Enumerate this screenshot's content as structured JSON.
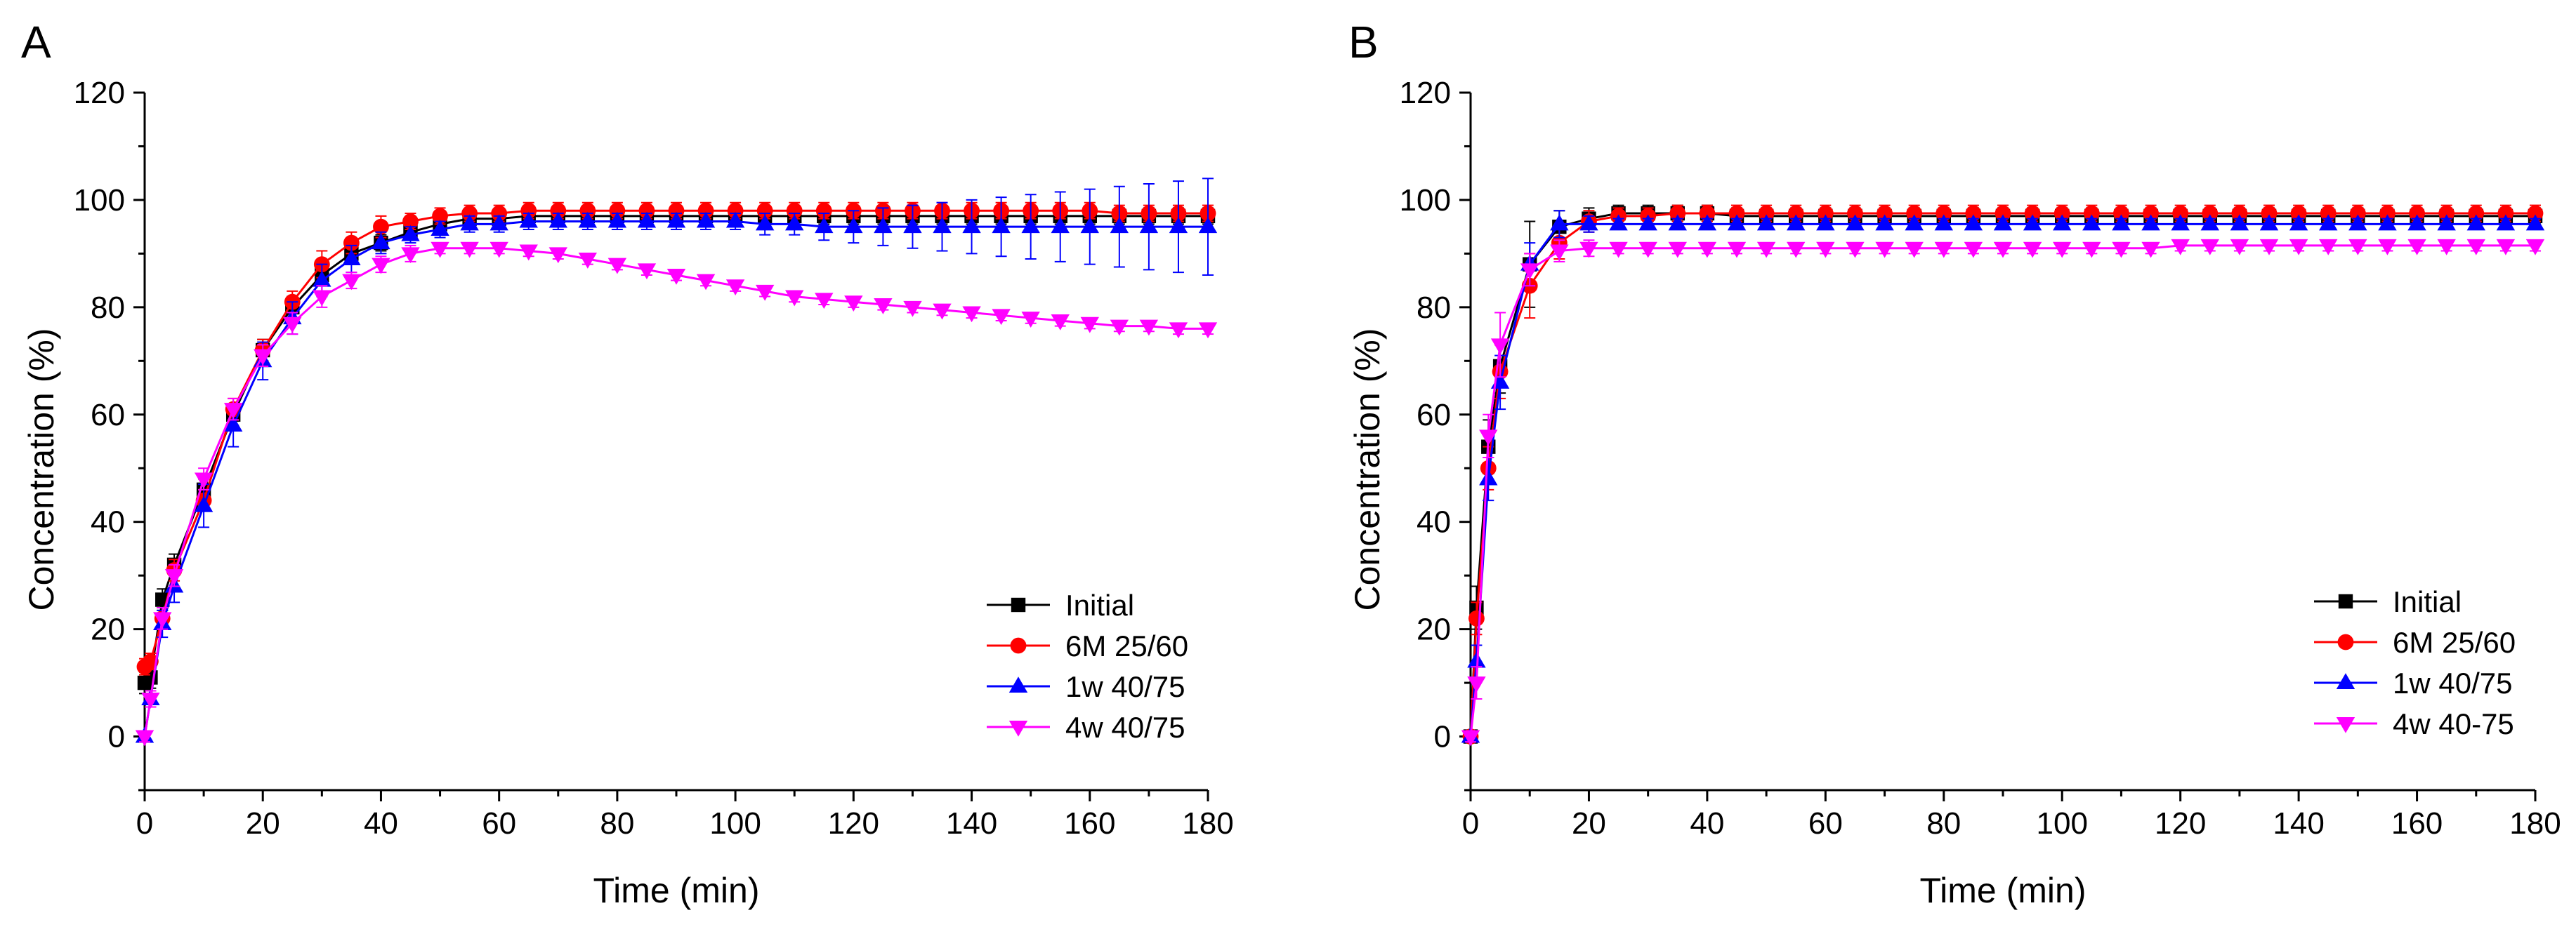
{
  "chart_data": [
    {
      "type": "line",
      "panel_label": "A",
      "xlabel": "Time (min)",
      "ylabel": "Concentration (%)",
      "xlim": [
        0,
        180
      ],
      "ylim": [
        -10,
        120
      ],
      "xticks": [
        0,
        20,
        40,
        60,
        80,
        100,
        120,
        140,
        160,
        180
      ],
      "yticks": [
        0,
        20,
        40,
        60,
        80,
        100,
        120
      ],
      "grid": false,
      "legend_position": "bottom-right",
      "x": [
        0,
        1,
        3,
        5,
        10,
        15,
        20,
        25,
        30,
        35,
        40,
        45,
        50,
        55,
        60,
        65,
        70,
        75,
        80,
        85,
        90,
        95,
        100,
        105,
        110,
        115,
        120,
        125,
        130,
        135,
        140,
        145,
        150,
        155,
        160,
        165,
        170,
        175,
        180
      ],
      "series": [
        {
          "name": "Initial",
          "color": "#000000",
          "marker": "square",
          "values": [
            10,
            11,
            25.5,
            32,
            46,
            60,
            72,
            80,
            86,
            90,
            92,
            94,
            95.5,
            96.5,
            96.5,
            97,
            97,
            97,
            97,
            97,
            97,
            97,
            97,
            97,
            97,
            97,
            97,
            97,
            97,
            97,
            97,
            97,
            97,
            97,
            97,
            97,
            97,
            97,
            97
          ],
          "errors": [
            2,
            2,
            2,
            2,
            2,
            2,
            2,
            2,
            2,
            1.5,
            1.5,
            1.5,
            1.5,
            1.5,
            1.5,
            1.5,
            1.5,
            1.5,
            1.5,
            1.5,
            1.5,
            1.5,
            1.5,
            1.5,
            1.5,
            1.5,
            1.5,
            1.5,
            1.5,
            1.5,
            1.5,
            1.5,
            1.5,
            1.5,
            1.5,
            1.5,
            1.5,
            1.5,
            1.5
          ]
        },
        {
          "name": "6M 25/60",
          "color": "#ff0000",
          "marker": "circle",
          "values": [
            13,
            14,
            22,
            31,
            44,
            61,
            72,
            81,
            88,
            92,
            95,
            96,
            97,
            97.5,
            97.5,
            98,
            98,
            98,
            98,
            98,
            98,
            98,
            98,
            98,
            98,
            98,
            98,
            98,
            98,
            98,
            98,
            98,
            98,
            98,
            98,
            97.5,
            97.5,
            97.5,
            97.5
          ],
          "errors": [
            1.5,
            1.5,
            2,
            2,
            2,
            2,
            2,
            2,
            2.5,
            2,
            2,
            1.5,
            1.5,
            1.5,
            1.5,
            1.5,
            1.5,
            1.5,
            1.5,
            1.5,
            1.5,
            1.5,
            1.5,
            1.5,
            1.5,
            1.5,
            1.5,
            1.5,
            1.5,
            1.5,
            1.5,
            1.5,
            1.5,
            1.5,
            1.5,
            1.5,
            1.5,
            1.5,
            1.5
          ]
        },
        {
          "name": "1w 40/75",
          "color": "#0000ff",
          "marker": "triangle-up",
          "values": [
            0,
            7,
            21,
            28,
            43,
            58,
            70,
            78,
            85,
            89,
            92,
            93.5,
            94.5,
            95.5,
            95.5,
            96,
            96,
            96,
            96,
            96,
            96,
            96,
            96,
            95.5,
            95.5,
            95,
            95,
            95,
            95,
            95,
            95,
            95,
            95,
            95,
            95,
            95,
            95,
            95,
            95
          ],
          "errors": [
            1,
            1.5,
            2.5,
            3,
            4,
            4,
            3.5,
            3,
            3,
            2.5,
            2,
            1.5,
            1.5,
            1.5,
            1.5,
            1.5,
            1.5,
            1.5,
            1.5,
            1.5,
            1.5,
            1.5,
            1.5,
            2,
            2,
            2.5,
            3,
            3.5,
            4,
            4.5,
            5,
            5.5,
            6,
            6.5,
            7,
            7.5,
            8,
            8.5,
            9
          ]
        },
        {
          "name": "4w 40/75",
          "color": "#ff00ff",
          "marker": "triangle-down",
          "values": [
            0,
            7,
            22,
            30,
            48,
            61,
            71,
            77,
            82,
            85,
            88,
            90,
            91,
            91,
            91,
            90.5,
            90,
            89,
            88,
            87,
            86,
            85,
            84,
            83,
            82,
            81.5,
            81,
            80.5,
            80,
            79.5,
            79,
            78.5,
            78,
            77.5,
            77,
            76.5,
            76.5,
            76,
            76
          ],
          "errors": [
            1,
            1.5,
            2,
            2,
            2,
            2,
            2,
            2,
            2,
            1.5,
            1.5,
            1.5,
            1,
            1,
            1,
            1,
            1,
            1,
            1,
            1,
            1,
            1,
            1,
            1,
            1,
            1,
            1,
            1,
            1,
            1,
            1,
            1,
            1,
            1,
            1,
            1,
            1,
            1,
            1
          ]
        }
      ]
    },
    {
      "type": "line",
      "panel_label": "B",
      "xlabel": "Time (min)",
      "ylabel": "Concentration (%)",
      "xlim": [
        0,
        180
      ],
      "ylim": [
        -10,
        120
      ],
      "xticks": [
        0,
        20,
        40,
        60,
        80,
        100,
        120,
        140,
        160,
        180
      ],
      "yticks": [
        0,
        20,
        40,
        60,
        80,
        100,
        120
      ],
      "grid": false,
      "legend_position": "bottom-right",
      "x": [
        0,
        1,
        3,
        5,
        10,
        15,
        20,
        25,
        30,
        35,
        40,
        45,
        50,
        55,
        60,
        65,
        70,
        75,
        80,
        85,
        90,
        95,
        100,
        105,
        110,
        115,
        120,
        125,
        130,
        135,
        140,
        145,
        150,
        155,
        160,
        165,
        170,
        175,
        180
      ],
      "series": [
        {
          "name": "Initial",
          "color": "#000000",
          "marker": "square",
          "values": [
            0,
            24,
            54,
            69,
            88,
            95,
            96.5,
            97.5,
            97.5,
            97.5,
            97.5,
            97,
            97,
            97,
            97,
            97,
            97,
            97,
            97,
            97,
            97,
            97,
            97,
            97,
            97,
            97,
            97,
            97,
            97,
            97,
            97,
            97,
            97,
            97,
            97,
            97,
            97,
            97,
            97
          ],
          "errors": [
            1,
            4,
            5,
            5,
            8,
            3,
            2,
            1.5,
            1.5,
            1.5,
            1.5,
            1.5,
            1.5,
            1.5,
            1.5,
            1.5,
            1.5,
            1.5,
            1.5,
            1.5,
            1.5,
            1.5,
            1.5,
            1.5,
            1.5,
            1.5,
            1.5,
            1.5,
            1.5,
            1.5,
            1.5,
            1.5,
            1.5,
            1.5,
            1.5,
            1.5,
            1.5,
            1.5,
            1.5
          ]
        },
        {
          "name": "6M 25/60",
          "color": "#ff0000",
          "marker": "circle",
          "values": [
            0,
            22,
            50,
            68,
            84,
            92,
            96,
            97,
            97,
            97.5,
            97.5,
            97.5,
            97.5,
            97.5,
            97.5,
            97.5,
            97.5,
            97.5,
            97.5,
            97.5,
            97.5,
            97.5,
            97.5,
            97.5,
            97.5,
            97.5,
            97.5,
            97.5,
            97.5,
            97.5,
            97.5,
            97.5,
            97.5,
            97.5,
            97.5,
            97.5,
            97.5,
            97.5,
            97.5
          ],
          "errors": [
            1,
            3,
            4,
            5,
            6,
            3,
            2,
            1.5,
            1.5,
            1.5,
            1.5,
            1.5,
            1.5,
            1.5,
            1.5,
            1.5,
            1.5,
            1.5,
            1.5,
            1.5,
            1.5,
            1.5,
            1.5,
            1.5,
            1.5,
            1.5,
            1.5,
            1.5,
            1.5,
            1.5,
            1.5,
            1.5,
            1.5,
            1.5,
            1.5,
            1.5,
            1.5,
            1.5,
            1.5
          ]
        },
        {
          "name": "1w 40/75",
          "color": "#0000ff",
          "marker": "triangle-up",
          "values": [
            0,
            14,
            48,
            66,
            88,
            95.5,
            95.5,
            95.5,
            95.5,
            95.5,
            95.5,
            95.5,
            95.5,
            95.5,
            95.5,
            95.5,
            95.5,
            95.5,
            95.5,
            95.5,
            95.5,
            95.5,
            95.5,
            95.5,
            95.5,
            95.5,
            95.5,
            95.5,
            95.5,
            95.5,
            95.5,
            95.5,
            95.5,
            95.5,
            95.5,
            95.5,
            95.5,
            95.5,
            95.5
          ],
          "errors": [
            1,
            3,
            4,
            5,
            4,
            2.5,
            1.5,
            1,
            1,
            1,
            1,
            1,
            1,
            1,
            1,
            1,
            1,
            1,
            1,
            1,
            1,
            1,
            1,
            1,
            1,
            1,
            1,
            1,
            1,
            1,
            1,
            1,
            1,
            1,
            1,
            1,
            1,
            1,
            1
          ]
        },
        {
          "name": "4w 40-75",
          "color": "#ff00ff",
          "marker": "triangle-down",
          "values": [
            0,
            10,
            56,
            73,
            87,
            90.5,
            91,
            91,
            91,
            91,
            91,
            91,
            91,
            91,
            91,
            91,
            91,
            91,
            91,
            91,
            91,
            91,
            91,
            91,
            91,
            91,
            91.5,
            91.5,
            91.5,
            91.5,
            91.5,
            91.5,
            91.5,
            91.5,
            91.5,
            91.5,
            91.5,
            91.5,
            91.5
          ],
          "errors": [
            1,
            3,
            4,
            6,
            3,
            2,
            1.5,
            1,
            1,
            1,
            1,
            1,
            1,
            1,
            1,
            1,
            1,
            1,
            1,
            1,
            1,
            1,
            1,
            1,
            1,
            1,
            1,
            1,
            1,
            1,
            1,
            1,
            1,
            1,
            1,
            1,
            1,
            1,
            1
          ]
        }
      ]
    }
  ]
}
